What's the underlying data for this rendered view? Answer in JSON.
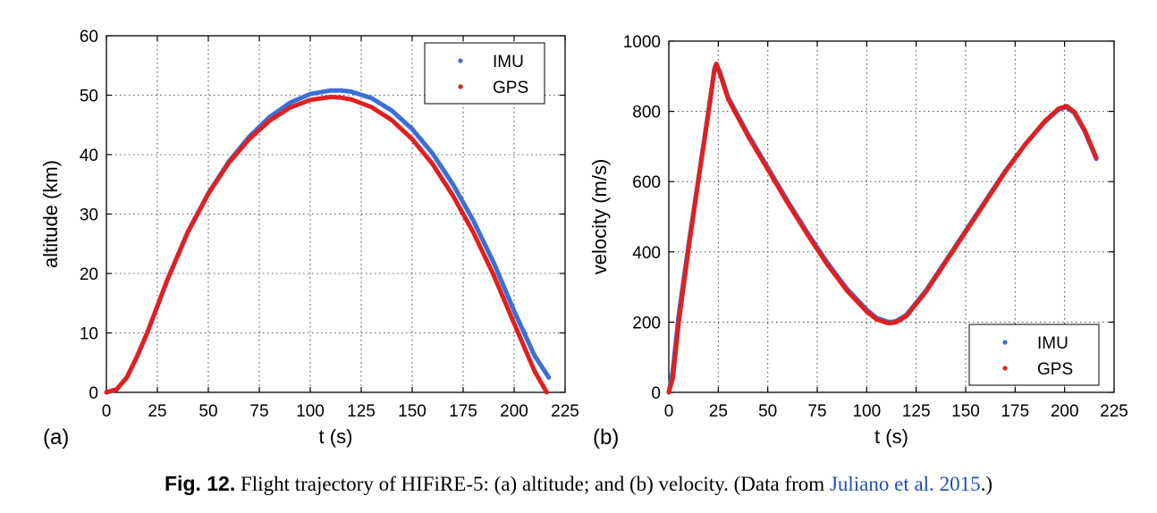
{
  "chart_data": [
    {
      "type": "line",
      "panel_label": "(a)",
      "xlabel": "t (s)",
      "ylabel": "altitude (km)",
      "xlim": [
        0,
        225
      ],
      "ylim": [
        0,
        60
      ],
      "xticks": [
        0,
        25,
        50,
        75,
        100,
        125,
        150,
        175,
        200,
        225
      ],
      "yticks": [
        0,
        10,
        20,
        30,
        40,
        50,
        60
      ],
      "grid": true,
      "legend_position": "top-right",
      "series": [
        {
          "name": "IMU",
          "color": "#3a6fd8",
          "x": [
            0,
            5,
            10,
            15,
            20,
            25,
            30,
            40,
            50,
            60,
            70,
            80,
            90,
            100,
            110,
            115,
            120,
            130,
            140,
            150,
            160,
            170,
            180,
            190,
            200,
            210,
            217
          ],
          "y": [
            0,
            0.5,
            2.5,
            6,
            10,
            14.5,
            19,
            27,
            33.5,
            38.8,
            43,
            46.3,
            48.7,
            50.2,
            50.8,
            50.8,
            50.6,
            49.5,
            47.4,
            44.3,
            40.2,
            35,
            28.9,
            21.8,
            13.7,
            6.2,
            2.5
          ]
        },
        {
          "name": "GPS",
          "color": "#e02020",
          "x": [
            0,
            5,
            10,
            15,
            20,
            25,
            30,
            40,
            50,
            60,
            70,
            80,
            90,
            100,
            110,
            115,
            120,
            130,
            140,
            150,
            160,
            170,
            180,
            190,
            200,
            210,
            216
          ],
          "y": [
            0,
            0.5,
            2.5,
            6,
            10,
            14.5,
            19,
            27,
            33.4,
            38.6,
            42.6,
            45.7,
            47.9,
            49.2,
            49.7,
            49.6,
            49.3,
            48,
            45.8,
            42.6,
            38.4,
            33.1,
            26.9,
            19.7,
            11.6,
            3.6,
            0
          ]
        }
      ]
    },
    {
      "type": "line",
      "panel_label": "(b)",
      "xlabel": "t (s)",
      "ylabel": "velocity (m/s)",
      "xlim": [
        0,
        225
      ],
      "ylim": [
        0,
        1000
      ],
      "xticks": [
        0,
        25,
        50,
        75,
        100,
        125,
        150,
        175,
        200,
        225
      ],
      "yticks": [
        0,
        200,
        400,
        600,
        800,
        1000
      ],
      "grid": true,
      "legend_position": "bottom-right",
      "series": [
        {
          "name": "IMU",
          "color": "#3a6fd8",
          "x": [
            0,
            2,
            5,
            10,
            15,
            20,
            23,
            24,
            26,
            30,
            40,
            50,
            60,
            70,
            80,
            90,
            100,
            105,
            110,
            112,
            115,
            120,
            130,
            140,
            150,
            160,
            170,
            180,
            190,
            197,
            201,
            205,
            210,
            216
          ],
          "y": [
            0,
            60,
            220,
            420,
            610,
            800,
            920,
            935,
            910,
            840,
            735,
            640,
            545,
            455,
            370,
            295,
            235,
            212,
            202,
            200,
            203,
            220,
            290,
            375,
            460,
            545,
            630,
            705,
            770,
            805,
            812,
            795,
            745,
            665
          ]
        },
        {
          "name": "GPS",
          "color": "#e02020",
          "x": [
            0,
            2,
            5,
            10,
            15,
            20,
            23,
            24,
            26,
            30,
            40,
            50,
            60,
            70,
            80,
            90,
            100,
            105,
            110,
            112,
            115,
            120,
            130,
            140,
            150,
            160,
            170,
            180,
            190,
            197,
            201,
            205,
            210,
            216
          ],
          "y": [
            0,
            40,
            200,
            410,
            605,
            795,
            915,
            935,
            905,
            835,
            730,
            635,
            540,
            450,
            365,
            290,
            230,
            208,
            198,
            197,
            200,
            217,
            287,
            372,
            457,
            542,
            628,
            705,
            772,
            808,
            815,
            798,
            748,
            668
          ]
        }
      ]
    }
  ],
  "caption": {
    "fig_label": "Fig. 12.",
    "text": " Flight trajectory of HIFiRE-5: (a) altitude; and (b) velocity. (Data from ",
    "reference": "Juliano et al. 2015",
    "end": ".)"
  }
}
